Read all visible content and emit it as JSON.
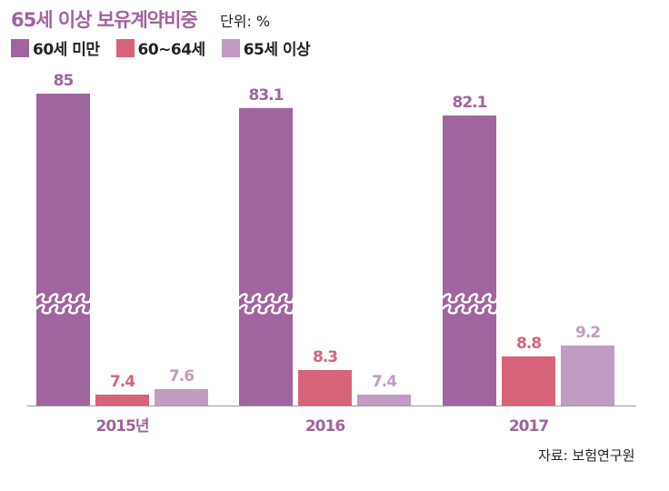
{
  "chart_data": {
    "type": "bar",
    "title": "65세 이상 보유계약비중",
    "unit_label": "단위: %",
    "categories": [
      "2015년",
      "2016",
      "2017"
    ],
    "series": [
      {
        "name": "60세 미만",
        "color": "#a0649e",
        "values": [
          85,
          83.1,
          82.1
        ],
        "labels": [
          "85",
          "83.1",
          "82.1"
        ]
      },
      {
        "name": "60~64세",
        "color": "#d6637a",
        "values": [
          7.4,
          8.3,
          8.8
        ],
        "labels": [
          "7.4",
          "8.3",
          "8.8"
        ]
      },
      {
        "name": "65세 이상",
        "color": "#c29bc2",
        "values": [
          7.6,
          7.4,
          9.2
        ],
        "labels": [
          "7.6",
          "7.4",
          "9.2"
        ]
      }
    ],
    "axis_break": true,
    "legend_position": "top-left",
    "source": "자료: 보험연구원"
  }
}
